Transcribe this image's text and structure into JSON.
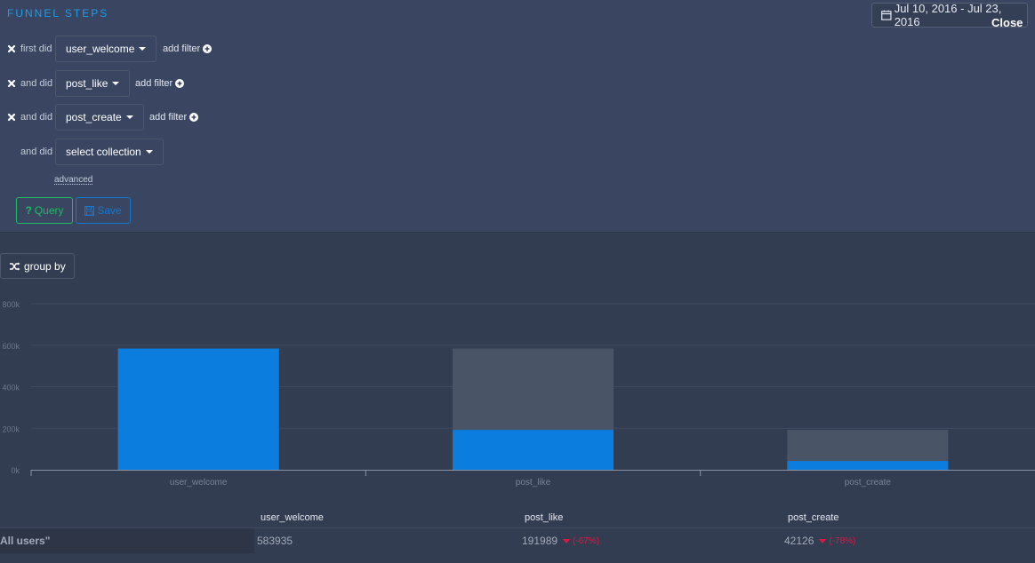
{
  "panel": {
    "title": "FUNNEL STEPS",
    "date_range": "Jul 10, 2016 - Jul 23, 2016",
    "close_label": "Close",
    "advanced_label": "advanced",
    "query_label": "Query",
    "save_label": "Save",
    "add_filter_label": "add filter"
  },
  "steps": [
    {
      "label": "first did",
      "collection": "user_welcome",
      "removable": true
    },
    {
      "label": "and did",
      "collection": "post_like",
      "removable": true
    },
    {
      "label": "and did",
      "collection": "post_create",
      "removable": true
    },
    {
      "label": "and did",
      "collection": "select collection",
      "removable": false
    }
  ],
  "group_by_label": "group by",
  "icons": {
    "date": "calendar-icon",
    "remove": "close-x-icon",
    "add": "plus-circle-icon",
    "query": "question-icon",
    "save": "floppy-disk-icon",
    "group": "shuffle-icon"
  },
  "colors": {
    "accent": "#1e9bea",
    "bar_converted": "#0b7ddf",
    "bar_total": "#4a5467",
    "query": "#1fbb62",
    "save": "#1477cf",
    "dropoff": "#e0173f"
  },
  "chart_data": {
    "type": "bar",
    "categories": [
      "user_welcome",
      "post_like",
      "post_create"
    ],
    "series": [
      {
        "values": [
          583935,
          583935,
          191989
        ]
      },
      {
        "values": [
          583935,
          191989,
          42126
        ]
      }
    ],
    "ylim": [
      0,
      800000
    ],
    "yticks": [
      0,
      200000,
      400000,
      600000,
      800000
    ],
    "ytick_labels": [
      "0k",
      "200k",
      "400k",
      "600k",
      "800k"
    ],
    "grid": true,
    "stacked": false
  },
  "table": {
    "columns": [
      "user_welcome",
      "post_like",
      "post_create"
    ],
    "rows": [
      {
        "label": "All users\"",
        "cells": [
          {
            "value": "583935",
            "change": ""
          },
          {
            "value": "191989",
            "change": "(-67%)"
          },
          {
            "value": "42126",
            "change": "(-78%)"
          }
        ]
      }
    ]
  }
}
